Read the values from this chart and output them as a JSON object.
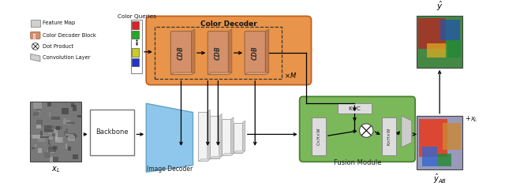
{
  "fig_width": 6.4,
  "fig_height": 2.36,
  "dpi": 100,
  "bg_color": "#ffffff",
  "orange_color": "#E8944A",
  "cdb_color": "#D4906A",
  "cdb_side_color": "#C07848",
  "cdb_top_color": "#E0A870",
  "green_color": "#7AB85A",
  "blue_color": "#7ABDE8",
  "gray_light": "#E8E8E8",
  "gray_mid": "#C8C8C8",
  "color_decoder_title": "Color Decoder",
  "image_decoder_title": "Image Decoder",
  "fusion_module_title": "Fusion Module",
  "backbone_title": "Backbone",
  "color_queries_title": "Color Queries",
  "xL_label": "$x_L$",
  "yhat_label": "$\\hat{y}$",
  "yhat_ab_label": "$\\hat{y}_{AB}$",
  "xL_add_label": "$+ x_L$",
  "xM_label": "$\\times M$",
  "kxc_label": "K×C",
  "cxhxw_label": "C×H×W",
  "kxhxw_label": "K×H×W",
  "cdb_label": "CDB"
}
